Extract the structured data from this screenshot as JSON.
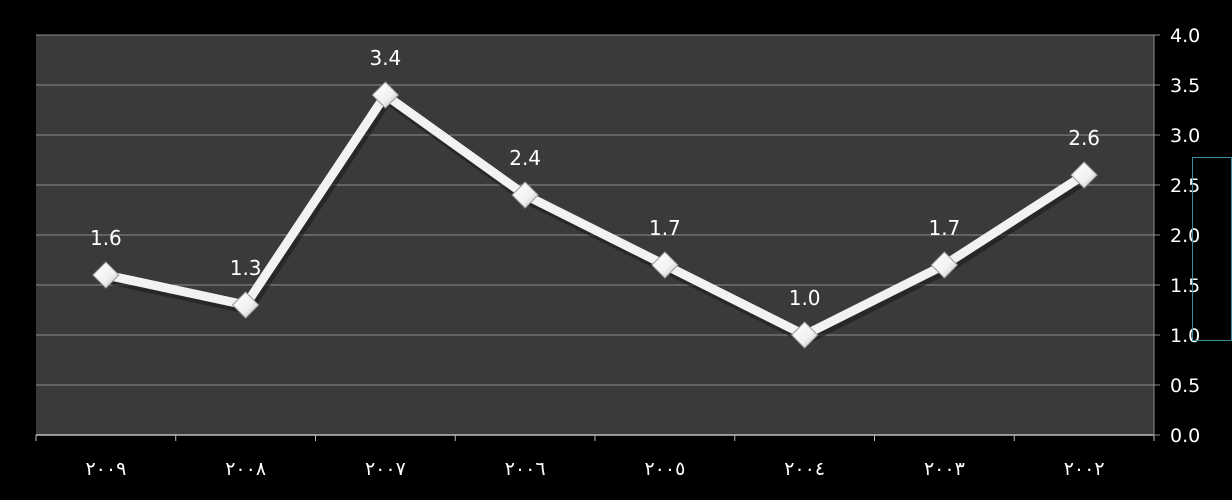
{
  "chart_data": {
    "type": "line",
    "title": "",
    "xlabel": "",
    "ylabel": "",
    "categories": [
      "٢٠٠٩",
      "٢٠٠٨",
      "٢٠٠٧",
      "٢٠٠٦",
      "٢٠٠٥",
      "٢٠٠٤",
      "٢٠٠٣",
      "٢٠٠٢"
    ],
    "series": [
      {
        "values": [
          1.6,
          1.3,
          3.4,
          2.4,
          1.7,
          1.0,
          1.7,
          2.6
        ],
        "labels": [
          "1.6",
          "1.3",
          "3.4",
          "2.4",
          "1.7",
          "1.0",
          "1.7",
          "2.6"
        ]
      }
    ],
    "ylim": [
      0,
      4
    ],
    "yticks": [
      "0.0",
      "0.5",
      "1.0",
      "1.5",
      "2.0",
      "2.5",
      "3.0",
      "3.5",
      "4.0"
    ],
    "y_axis_position": "right",
    "grid": true,
    "legend": "none",
    "colors": {
      "background": "#000000",
      "plot_area": "#3a3a3a",
      "grid": "#8c8c8c",
      "line": "#f2f2f2",
      "marker": "#ffffff",
      "text": "#ffffff",
      "side_box": "#3c8ea3"
    }
  }
}
